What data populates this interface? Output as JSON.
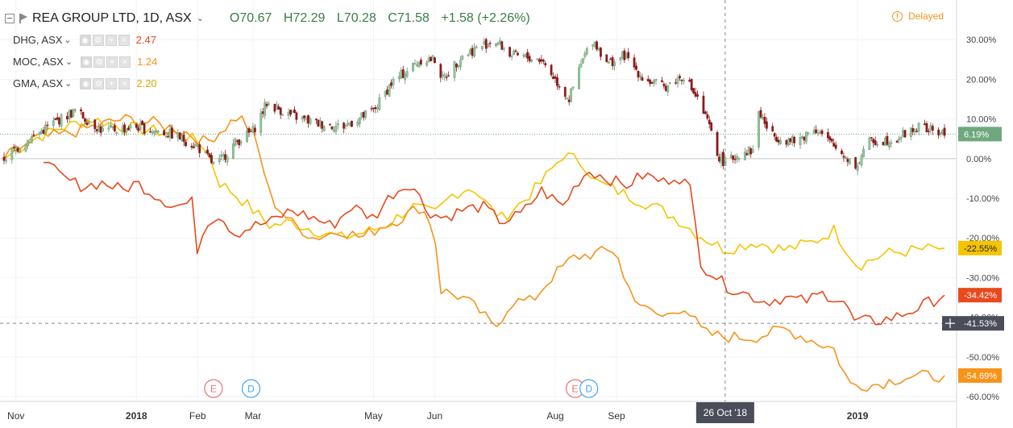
{
  "header": {
    "symbol_title": "REA GROUP LTD, 1D, ASX",
    "open": "O70.67",
    "high": "H72.29",
    "low": "L70.28",
    "close": "C71.58",
    "change": "+1.58 (+2.26%)",
    "delayed": "Delayed"
  },
  "compare_symbols": [
    {
      "label": "DHG, ASX",
      "value": "2.47",
      "color": "#e8491d"
    },
    {
      "label": "MOC, ASX",
      "value": "1.24",
      "color": "#f7931a"
    },
    {
      "label": "GMA, ASX",
      "value": "2.20",
      "color": "#f5c400"
    }
  ],
  "colors": {
    "up_candle": "#8ec89a",
    "down_candle": "#8b1a1a",
    "DHG": "#e8491d",
    "MOC": "#f7931a",
    "GMA": "#f5c400",
    "crosshair_label": "#4a4e59",
    "current_line": "#6fa87d"
  },
  "chart_data": {
    "type": "line",
    "y_axis": {
      "unit": "percent",
      "ylim": [
        -64,
        35
      ],
      "ticks": [
        "30.00%",
        "20.00%",
        "10.00%",
        "0.00%",
        "-10.00%",
        "-20.00%",
        "-30.00%",
        "-40.00%",
        "-50.00%",
        "-60.00%"
      ],
      "tick_values": [
        30,
        20,
        10,
        0,
        -10,
        -20,
        -30,
        -40,
        -50,
        -60
      ]
    },
    "x_axis": {
      "tick_labels": [
        "Nov",
        "2018",
        "Feb",
        "Mar",
        "May",
        "Jun",
        "Aug",
        "Sep",
        "2019"
      ],
      "tick_dates": [
        "2017-11-01",
        "2018-01-01",
        "2018-02-01",
        "2018-03-01",
        "2018-05-01",
        "2018-06-01",
        "2018-08-01",
        "2018-09-01",
        "2019-01-01"
      ],
      "date_range": [
        "2017-10-26",
        "2019-02-14"
      ],
      "crosshair_label": "26 Oct '18",
      "crosshair_date": "2018-10-26"
    },
    "crosshair_value": "-41.53%",
    "events": [
      {
        "type": "E",
        "date": "2018-02-09"
      },
      {
        "type": "D",
        "date": "2018-02-28"
      },
      {
        "type": "E",
        "date": "2018-08-11"
      },
      {
        "type": "D",
        "date": "2018-08-18"
      }
    ],
    "last_values": [
      {
        "series": "REA",
        "label": "6.19%",
        "value": 6.19
      },
      {
        "series": "GMA",
        "label": "-22.55%",
        "value": -22.55
      },
      {
        "series": "DHG",
        "label": "-34.42%",
        "value": -34.42
      },
      {
        "series": "MOC",
        "label": "-54.69%",
        "value": -54.69
      }
    ],
    "series": [
      {
        "name": "REA",
        "style": "candles",
        "points": [
          [
            "2017-10-26",
            0
          ],
          [
            "2017-11-05",
            4
          ],
          [
            "2017-11-20",
            9
          ],
          [
            "2017-12-01",
            12
          ],
          [
            "2017-12-15",
            7
          ],
          [
            "2018-01-01",
            8
          ],
          [
            "2018-01-20",
            6
          ],
          [
            "2018-02-01",
            3
          ],
          [
            "2018-02-10",
            -2
          ],
          [
            "2018-02-20",
            4
          ],
          [
            "2018-03-01",
            7
          ],
          [
            "2018-03-08",
            14
          ],
          [
            "2018-03-20",
            11
          ],
          [
            "2018-04-01",
            9
          ],
          [
            "2018-04-15",
            8
          ],
          [
            "2018-05-01",
            12
          ],
          [
            "2018-05-10",
            19
          ],
          [
            "2018-05-25",
            25
          ],
          [
            "2018-06-01",
            25
          ],
          [
            "2018-06-05",
            20
          ],
          [
            "2018-06-15",
            26
          ],
          [
            "2018-07-01",
            30
          ],
          [
            "2018-07-10",
            26
          ],
          [
            "2018-07-25",
            25
          ],
          [
            "2018-08-01",
            20
          ],
          [
            "2018-08-08",
            15
          ],
          [
            "2018-08-15",
            25
          ],
          [
            "2018-08-20",
            30
          ],
          [
            "2018-08-28",
            24
          ],
          [
            "2018-09-05",
            26
          ],
          [
            "2018-09-15",
            20
          ],
          [
            "2018-09-25",
            18
          ],
          [
            "2018-10-05",
            21
          ],
          [
            "2018-10-12",
            15
          ],
          [
            "2018-10-18",
            8
          ],
          [
            "2018-10-22",
            1
          ],
          [
            "2018-10-26",
            -1
          ],
          [
            "2018-11-05",
            2
          ],
          [
            "2018-11-10",
            2
          ],
          [
            "2018-11-12",
            12
          ],
          [
            "2018-11-18",
            6
          ],
          [
            "2018-12-01",
            4
          ],
          [
            "2018-12-10",
            8
          ],
          [
            "2018-12-20",
            3
          ],
          [
            "2019-01-01",
            -2
          ],
          [
            "2019-01-05",
            4
          ],
          [
            "2019-01-20",
            5
          ],
          [
            "2019-02-01",
            8
          ],
          [
            "2019-02-14",
            6.19
          ]
        ]
      },
      {
        "name": "DHG",
        "style": "line",
        "points": [
          [
            "2017-11-15",
            -1
          ],
          [
            "2017-11-25",
            -5
          ],
          [
            "2017-12-05",
            -7
          ],
          [
            "2017-12-15",
            -6
          ],
          [
            "2017-12-25",
            -8
          ],
          [
            "2018-01-01",
            -6
          ],
          [
            "2018-01-10",
            -9
          ],
          [
            "2018-01-20",
            -12
          ],
          [
            "2018-01-30",
            -11
          ],
          [
            "2018-02-01",
            -24
          ],
          [
            "2018-02-05",
            -16
          ],
          [
            "2018-02-12",
            -14
          ],
          [
            "2018-02-20",
            -19
          ],
          [
            "2018-03-01",
            -17
          ],
          [
            "2018-03-10",
            -16
          ],
          [
            "2018-03-20",
            -13
          ],
          [
            "2018-04-01",
            -15
          ],
          [
            "2018-04-10",
            -17
          ],
          [
            "2018-04-20",
            -12
          ],
          [
            "2018-05-01",
            -15
          ],
          [
            "2018-05-10",
            -9
          ],
          [
            "2018-05-20",
            -6
          ],
          [
            "2018-05-28",
            -13
          ],
          [
            "2018-06-05",
            -15
          ],
          [
            "2018-06-15",
            -13
          ],
          [
            "2018-06-25",
            -12
          ],
          [
            "2018-07-05",
            -16
          ],
          [
            "2018-07-15",
            -14
          ],
          [
            "2018-07-25",
            -8
          ],
          [
            "2018-08-05",
            -12
          ],
          [
            "2018-08-12",
            -6
          ],
          [
            "2018-08-18",
            -3
          ],
          [
            "2018-08-28",
            -5
          ],
          [
            "2018-09-05",
            -7
          ],
          [
            "2018-09-15",
            -4
          ],
          [
            "2018-09-25",
            -6
          ],
          [
            "2018-10-01",
            -4
          ],
          [
            "2018-10-08",
            -7
          ],
          [
            "2018-10-14",
            -27
          ],
          [
            "2018-10-20",
            -29
          ],
          [
            "2018-10-26",
            -32
          ],
          [
            "2018-11-05",
            -34
          ],
          [
            "2018-11-15",
            -36
          ],
          [
            "2018-11-25",
            -35
          ],
          [
            "2018-12-05",
            -36
          ],
          [
            "2018-12-15",
            -34
          ],
          [
            "2018-12-25",
            -36
          ],
          [
            "2018-12-30",
            -41
          ],
          [
            "2019-01-10",
            -41
          ],
          [
            "2019-01-20",
            -40
          ],
          [
            "2019-01-30",
            -38
          ],
          [
            "2019-02-14",
            -34.42
          ]
        ]
      },
      {
        "name": "MOC",
        "style": "line",
        "points": [
          [
            "2017-10-26",
            0
          ],
          [
            "2017-11-10",
            5
          ],
          [
            "2017-11-25",
            6
          ],
          [
            "2017-12-10",
            8
          ],
          [
            "2017-12-25",
            10
          ],
          [
            "2018-01-10",
            9
          ],
          [
            "2018-01-25",
            7
          ],
          [
            "2018-02-05",
            4
          ],
          [
            "2018-02-15",
            8
          ],
          [
            "2018-02-22",
            11
          ],
          [
            "2018-03-01",
            6
          ],
          [
            "2018-03-05",
            0
          ],
          [
            "2018-03-10",
            -10
          ],
          [
            "2018-03-20",
            -16
          ],
          [
            "2018-04-01",
            -20
          ],
          [
            "2018-04-15",
            -18
          ],
          [
            "2018-04-25",
            -20
          ],
          [
            "2018-05-05",
            -17
          ],
          [
            "2018-05-15",
            -15
          ],
          [
            "2018-05-25",
            -12
          ],
          [
            "2018-06-01",
            -18
          ],
          [
            "2018-06-03",
            -33
          ],
          [
            "2018-06-15",
            -35
          ],
          [
            "2018-06-25",
            -39
          ],
          [
            "2018-07-01",
            -43
          ],
          [
            "2018-07-10",
            -36
          ],
          [
            "2018-07-20",
            -36
          ],
          [
            "2018-07-30",
            -30
          ],
          [
            "2018-08-10",
            -25
          ],
          [
            "2018-08-20",
            -24
          ],
          [
            "2018-09-01",
            -23
          ],
          [
            "2018-09-05",
            -31
          ],
          [
            "2018-09-15",
            -38
          ],
          [
            "2018-09-25",
            -40
          ],
          [
            "2018-10-05",
            -37
          ],
          [
            "2018-10-15",
            -44
          ],
          [
            "2018-10-26",
            -45
          ],
          [
            "2018-11-10",
            -45
          ],
          [
            "2018-11-25",
            -43
          ],
          [
            "2018-12-10",
            -46
          ],
          [
            "2018-12-20",
            -48
          ],
          [
            "2018-12-28",
            -57
          ],
          [
            "2019-01-10",
            -57
          ],
          [
            "2019-01-25",
            -55
          ],
          [
            "2019-02-14",
            -54.69
          ]
        ]
      },
      {
        "name": "GMA",
        "style": "line",
        "points": [
          [
            "2017-10-26",
            0
          ],
          [
            "2017-11-10",
            5
          ],
          [
            "2017-11-25",
            8
          ],
          [
            "2017-12-10",
            10
          ],
          [
            "2017-12-25",
            8
          ],
          [
            "2018-01-10",
            7
          ],
          [
            "2018-01-25",
            6
          ],
          [
            "2018-02-05",
            3
          ],
          [
            "2018-02-12",
            -6
          ],
          [
            "2018-02-20",
            -9
          ],
          [
            "2018-03-01",
            -13
          ],
          [
            "2018-03-10",
            -17
          ],
          [
            "2018-03-20",
            -16
          ],
          [
            "2018-04-01",
            -18
          ],
          [
            "2018-04-15",
            -20
          ],
          [
            "2018-05-01",
            -18
          ],
          [
            "2018-05-10",
            -16
          ],
          [
            "2018-05-20",
            -12
          ],
          [
            "2018-06-01",
            -14
          ],
          [
            "2018-06-10",
            -9
          ],
          [
            "2018-06-20",
            -7
          ],
          [
            "2018-06-28",
            -12
          ],
          [
            "2018-07-05",
            -15
          ],
          [
            "2018-07-15",
            -11
          ],
          [
            "2018-07-25",
            -6
          ],
          [
            "2018-08-05",
            1
          ],
          [
            "2018-08-15",
            -1
          ],
          [
            "2018-08-22",
            -6
          ],
          [
            "2018-09-01",
            -8
          ],
          [
            "2018-09-10",
            -10
          ],
          [
            "2018-09-20",
            -12
          ],
          [
            "2018-10-01",
            -15
          ],
          [
            "2018-10-12",
            -19
          ],
          [
            "2018-10-26",
            -23
          ],
          [
            "2018-11-10",
            -21
          ],
          [
            "2018-11-25",
            -23
          ],
          [
            "2018-12-10",
            -21
          ],
          [
            "2018-12-20",
            -18
          ],
          [
            "2019-01-01",
            -27
          ],
          [
            "2019-01-15",
            -24
          ],
          [
            "2019-02-01",
            -23
          ],
          [
            "2019-02-14",
            -22.55
          ]
        ]
      }
    ]
  }
}
